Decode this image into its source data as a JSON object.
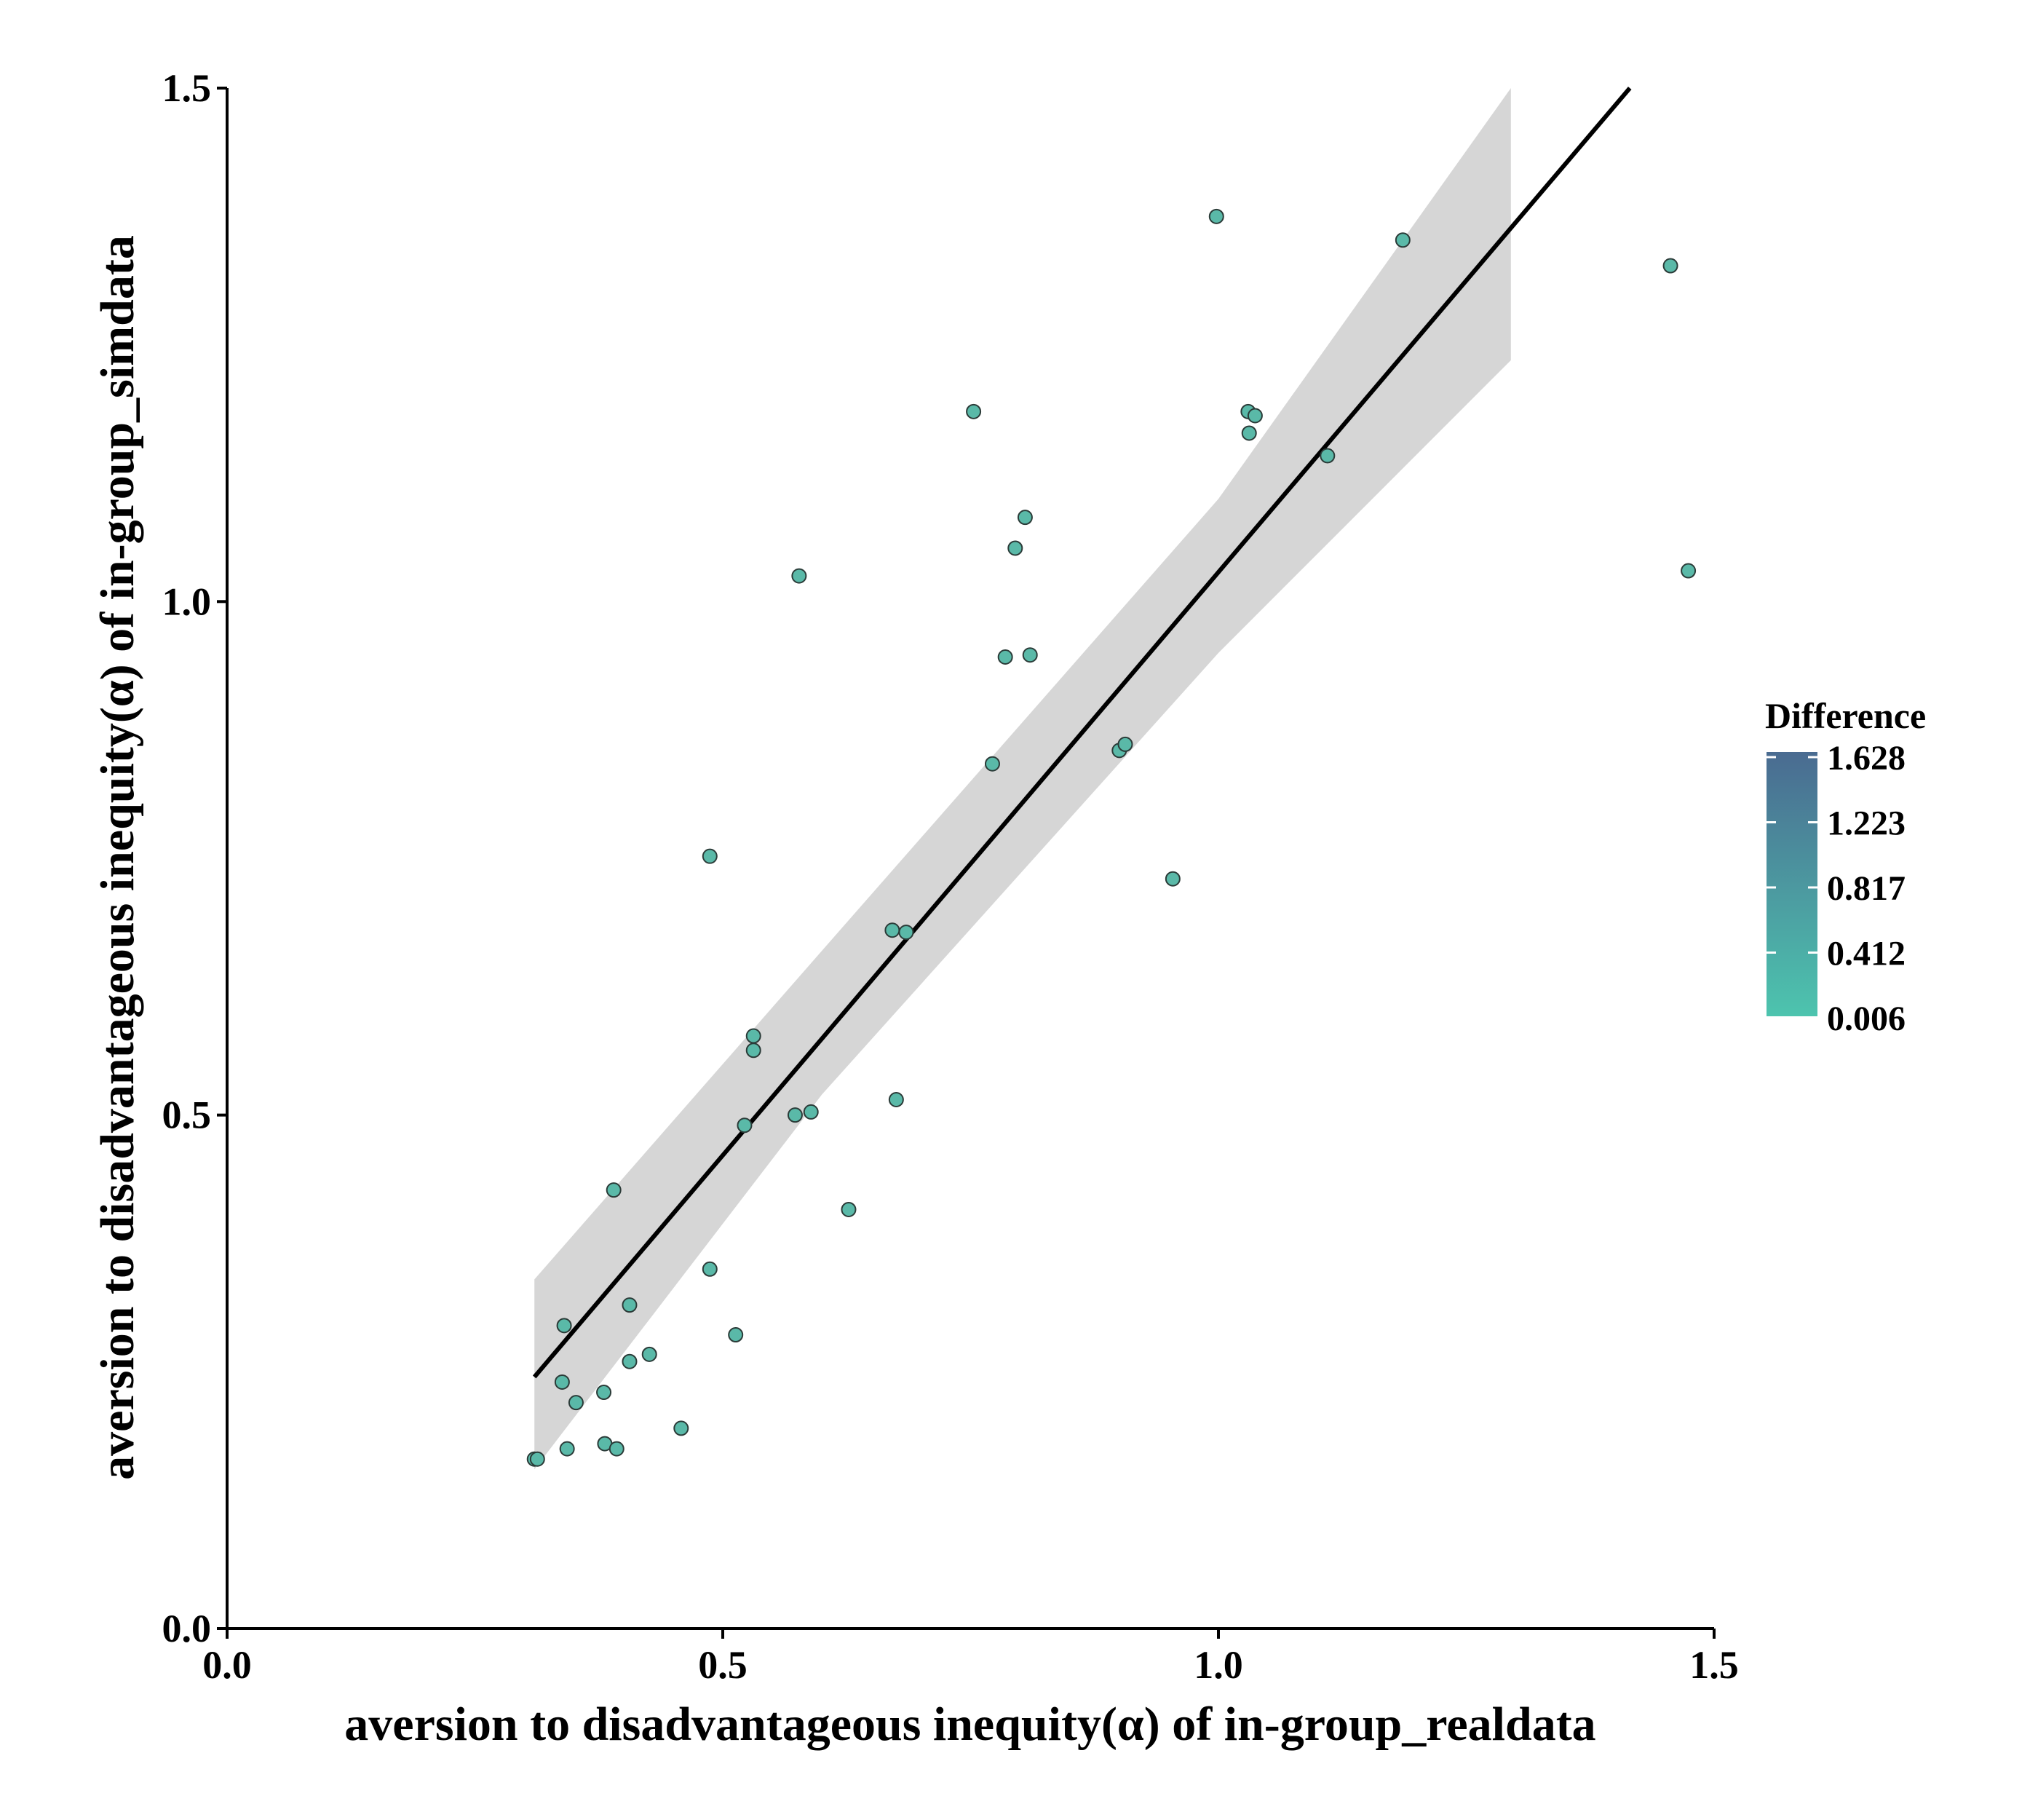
{
  "chart_data": {
    "type": "scatter",
    "xlabel": "aversion to disadvantageous inequity(α) of in-group_realdata",
    "ylabel": "aversion to disadvantageous inequity(α) of in-group_simdata",
    "xlim": [
      0,
      1.5
    ],
    "ylim": [
      0,
      1.5
    ],
    "x_ticks": [
      "0.0",
      "0.5",
      "1.0",
      "1.5"
    ],
    "y_ticks": [
      "0.0",
      "0.5",
      "1.0",
      "1.5"
    ],
    "grid": false,
    "legend": {
      "title": "Difference",
      "placement": "right",
      "labels": [
        "1.628",
        "1.223",
        "0.817",
        "0.412",
        "0.006"
      ],
      "color_high": "#4a6b91",
      "color_low": "#4dc4ae"
    },
    "point_fill": "#5ab9a8",
    "point_stroke": "#2b3b38",
    "fit_line": {
      "x": [
        0.31,
        1.415
      ],
      "y": [
        0.245,
        1.5
      ],
      "color": "#000000"
    },
    "confidence_band": {
      "x": [
        0.31,
        0.6,
        1.0,
        1.295
      ],
      "upper": [
        0.34,
        0.66,
        1.1,
        1.5
      ],
      "lower": [
        0.155,
        0.52,
        0.95,
        1.235
      ],
      "color": "#d6d6d6"
    },
    "points": [
      {
        "x": 0.31,
        "y": 0.165
      },
      {
        "x": 0.313,
        "y": 0.165
      },
      {
        "x": 0.34,
        "y": 0.295
      },
      {
        "x": 0.338,
        "y": 0.24
      },
      {
        "x": 0.343,
        "y": 0.175
      },
      {
        "x": 0.352,
        "y": 0.22
      },
      {
        "x": 0.38,
        "y": 0.23
      },
      {
        "x": 0.381,
        "y": 0.18
      },
      {
        "x": 0.393,
        "y": 0.175
      },
      {
        "x": 0.39,
        "y": 0.427
      },
      {
        "x": 0.406,
        "y": 0.26
      },
      {
        "x": 0.406,
        "y": 0.315
      },
      {
        "x": 0.426,
        "y": 0.267
      },
      {
        "x": 0.458,
        "y": 0.195
      },
      {
        "x": 0.487,
        "y": 0.35
      },
      {
        "x": 0.487,
        "y": 0.752
      },
      {
        "x": 0.513,
        "y": 0.286
      },
      {
        "x": 0.522,
        "y": 0.49
      },
      {
        "x": 0.531,
        "y": 0.577
      },
      {
        "x": 0.531,
        "y": 0.563
      },
      {
        "x": 0.573,
        "y": 0.5
      },
      {
        "x": 0.577,
        "y": 1.025
      },
      {
        "x": 0.589,
        "y": 0.503
      },
      {
        "x": 0.627,
        "y": 0.408
      },
      {
        "x": 0.671,
        "y": 0.68
      },
      {
        "x": 0.675,
        "y": 0.515
      },
      {
        "x": 0.685,
        "y": 0.678
      },
      {
        "x": 0.753,
        "y": 1.185
      },
      {
        "x": 0.772,
        "y": 0.842
      },
      {
        "x": 0.785,
        "y": 0.946
      },
      {
        "x": 0.795,
        "y": 1.052
      },
      {
        "x": 0.805,
        "y": 1.082
      },
      {
        "x": 0.81,
        "y": 0.948
      },
      {
        "x": 0.9,
        "y": 0.855
      },
      {
        "x": 0.906,
        "y": 0.861
      },
      {
        "x": 0.954,
        "y": 0.73
      },
      {
        "x": 0.998,
        "y": 1.375
      },
      {
        "x": 1.03,
        "y": 1.185
      },
      {
        "x": 1.031,
        "y": 1.164
      },
      {
        "x": 1.037,
        "y": 1.181
      },
      {
        "x": 1.11,
        "y": 1.142
      },
      {
        "x": 1.186,
        "y": 1.352
      },
      {
        "x": 1.456,
        "y": 1.327
      },
      {
        "x": 1.474,
        "y": 1.03
      }
    ]
  }
}
